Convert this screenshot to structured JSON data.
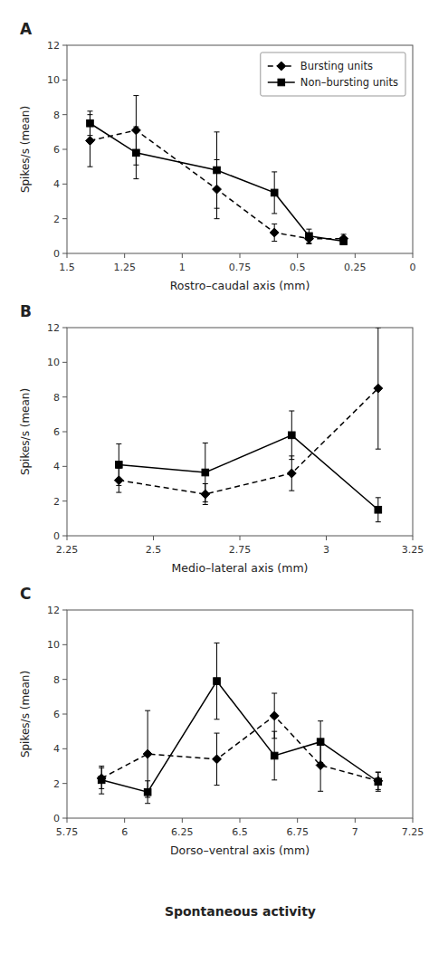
{
  "chart_data": [
    {
      "type": "line",
      "title": "A",
      "x_label": "Rostro–caudal axis (mm)",
      "y_label": "Spikes/s (mean)",
      "xlim": [
        1.5,
        0
      ],
      "ylim": [
        0,
        12
      ],
      "xticks": [
        1.5,
        1.25,
        1,
        0.75,
        0.5,
        0.25,
        0
      ],
      "yticks": [
        0,
        2,
        4,
        6,
        8,
        10,
        12
      ],
      "grid": false,
      "legend": "upper right",
      "x": [
        1.4,
        1.2,
        0.85,
        0.6,
        0.45,
        0.3
      ],
      "series": [
        {
          "name": "Bursting units",
          "color": "#000000",
          "marker": "diamond",
          "line_style": "dashed",
          "values": [
            6.5,
            7.1,
            3.7,
            1.2,
            0.85,
            0.85
          ],
          "yerr": [
            1.5,
            2.0,
            1.7,
            0.5,
            0.3,
            0.25
          ]
        },
        {
          "name": "Non–bursting units",
          "color": "#000000",
          "marker": "square",
          "line_style": "solid",
          "values": [
            7.5,
            5.8,
            4.8,
            3.5,
            1.0,
            0.7
          ],
          "yerr": [
            0.7,
            1.5,
            2.2,
            1.2,
            0.4,
            0.2
          ]
        }
      ]
    },
    {
      "type": "line",
      "title": "B",
      "x_label": "Medio–lateral axis (mm)",
      "y_label": "Spikes/s (mean)",
      "xlim": [
        2.25,
        3.25
      ],
      "ylim": [
        0,
        12
      ],
      "xticks": [
        2.25,
        2.5,
        2.75,
        3,
        3.25
      ],
      "yticks": [
        0,
        2,
        4,
        6,
        8,
        10,
        12
      ],
      "grid": false,
      "x": [
        2.4,
        2.65,
        2.9,
        3.15
      ],
      "series": [
        {
          "color": "#000000",
          "marker": "diamond",
          "line_style": "dashed",
          "values": [
            3.2,
            2.4,
            3.6,
            8.5
          ],
          "yerr": [
            0.7,
            0.6,
            1.0,
            3.5
          ]
        },
        {
          "color": "#000000",
          "marker": "square",
          "line_style": "solid",
          "values": [
            4.1,
            3.65,
            5.8,
            1.5
          ],
          "yerr": [
            1.2,
            1.7,
            1.4,
            0.7
          ]
        }
      ]
    },
    {
      "type": "line",
      "title": "C",
      "x_label": "Dorso–ventral axis (mm)",
      "y_label": "Spikes/s (mean)",
      "xlim": [
        5.75,
        7.25
      ],
      "ylim": [
        0,
        12
      ],
      "xticks": [
        5.75,
        6,
        6.25,
        6.5,
        6.75,
        7,
        7.25
      ],
      "yticks": [
        0,
        2,
        4,
        6,
        8,
        10,
        12
      ],
      "grid": false,
      "x": [
        5.9,
        6.1,
        6.4,
        6.65,
        6.85,
        7.1
      ],
      "series": [
        {
          "color": "#000000",
          "marker": "diamond",
          "line_style": "dashed",
          "values": [
            2.3,
            3.7,
            3.4,
            5.9,
            3.05,
            2.15
          ],
          "yerr": [
            0.6,
            2.5,
            1.5,
            1.3,
            1.5,
            0.5
          ]
        },
        {
          "color": "#000000",
          "marker": "square",
          "line_style": "solid",
          "values": [
            2.2,
            1.5,
            7.9,
            3.6,
            4.4,
            2.1
          ],
          "yerr": [
            0.8,
            0.65,
            2.2,
            1.4,
            1.2,
            0.55
          ]
        }
      ]
    }
  ],
  "annotation": "Spontaneous activity"
}
